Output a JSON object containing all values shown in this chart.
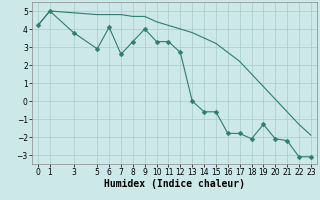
{
  "xlabel": "Humidex (Indice chaleur)",
  "ylabel": "",
  "background_color": "#cce8e8",
  "grid_color": "#aacccc",
  "line_color": "#2e7d6e",
  "x_line1": [
    0,
    1,
    3,
    5,
    6,
    7,
    8,
    9,
    10,
    11,
    12,
    13,
    14,
    15,
    16,
    17,
    18,
    19,
    20,
    21,
    22,
    23
  ],
  "y_line1": [
    4.2,
    5.0,
    3.8,
    2.9,
    4.1,
    2.6,
    3.3,
    4.0,
    3.3,
    3.3,
    2.7,
    0.0,
    -0.6,
    -0.6,
    -1.8,
    -1.8,
    -2.1,
    -1.3,
    -2.1,
    -2.2,
    -3.1,
    -3.1
  ],
  "x_line2": [
    0,
    1,
    5,
    6,
    7,
    8,
    9,
    10,
    11,
    12,
    13,
    14,
    15,
    16,
    17,
    18,
    19,
    20,
    21,
    22,
    23
  ],
  "y_line2": [
    4.2,
    5.0,
    4.8,
    4.8,
    4.8,
    4.7,
    4.7,
    4.4,
    4.2,
    4.0,
    3.8,
    3.5,
    3.2,
    2.7,
    2.2,
    1.5,
    0.8,
    0.1,
    -0.6,
    -1.3,
    -1.9
  ],
  "xlim": [
    -0.5,
    23.5
  ],
  "ylim": [
    -3.5,
    5.5
  ],
  "yticks": [
    -3,
    -2,
    -1,
    0,
    1,
    2,
    3,
    4,
    5
  ],
  "xticks": [
    0,
    1,
    3,
    5,
    6,
    7,
    8,
    9,
    10,
    11,
    12,
    13,
    14,
    15,
    16,
    17,
    18,
    19,
    20,
    21,
    22,
    23
  ],
  "xtick_labels": [
    "0",
    "1",
    "3",
    "5",
    "6",
    "7",
    "8",
    "9",
    "10",
    "11",
    "12",
    "13",
    "14",
    "15",
    "16",
    "17",
    "18",
    "19",
    "20",
    "21",
    "22",
    "23"
  ],
  "marker": "D",
  "markersize": 2.5,
  "linewidth": 0.8,
  "tick_fontsize": 5.5,
  "xlabel_fontsize": 7
}
